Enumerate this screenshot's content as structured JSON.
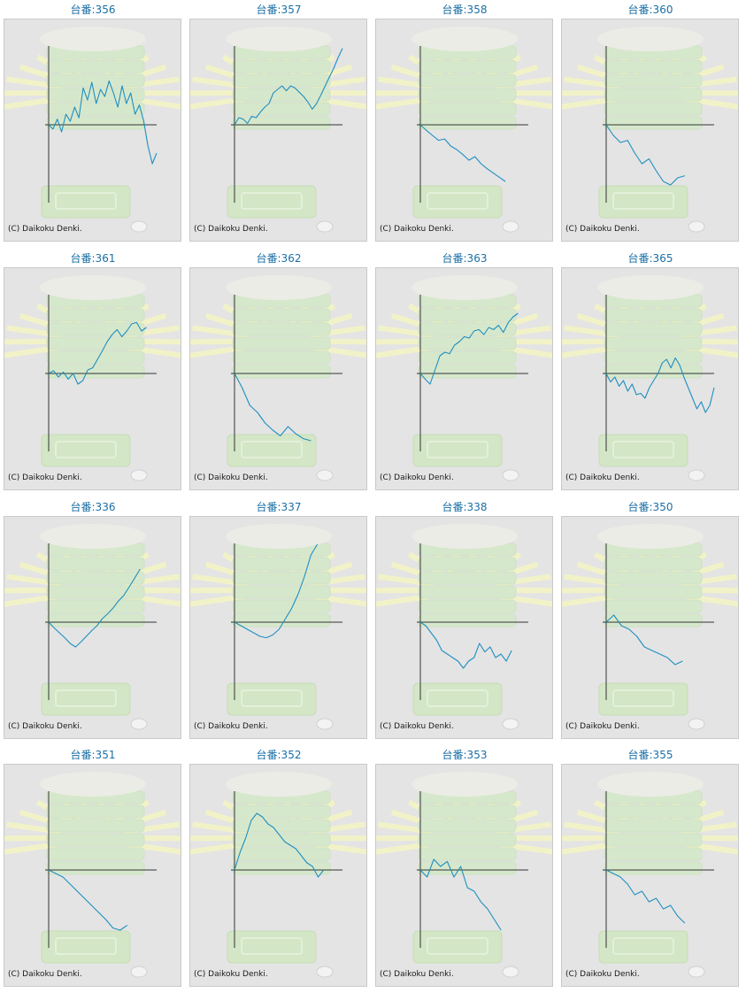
{
  "copyright": "(C) Daikoku Denki.",
  "line_color": "#1e8fc0",
  "title_color": "#1a6fa5",
  "chart_data": [
    {
      "type": "line",
      "title": "台番:356",
      "series": [
        {
          "values": [
            0,
            -0.06,
            0.08,
            -0.1,
            0.15,
            0.05,
            0.25,
            0.1,
            0.52,
            0.35,
            0.6,
            0.3,
            0.5,
            0.4,
            0.62,
            0.45,
            0.25,
            0.55,
            0.3,
            0.45,
            0.15,
            0.28,
            0.05,
            -0.3,
            -0.55,
            -0.4
          ]
        }
      ]
    },
    {
      "type": "line",
      "title": "台番:357",
      "series": [
        {
          "values": [
            0,
            0.1,
            0.08,
            0.02,
            0.12,
            0.1,
            0.18,
            0.25,
            0.3,
            0.45,
            0.5,
            0.55,
            0.48,
            0.55,
            0.52,
            0.46,
            0.4,
            0.32,
            0.22,
            0.3,
            0.42,
            0.55,
            0.68,
            0.8,
            0.95,
            1.08
          ]
        }
      ]
    },
    {
      "type": "line",
      "title": "台番:358",
      "series": [
        {
          "values": [
            0,
            -0.08,
            -0.15,
            -0.22,
            -0.2,
            -0.3,
            -0.35,
            -0.42,
            -0.5,
            -0.45,
            -0.55,
            -0.62,
            -0.68,
            -0.74,
            -0.8
          ]
        }
      ]
    },
    {
      "type": "line",
      "title": "台番:360",
      "series": [
        {
          "values": [
            0,
            -0.15,
            -0.25,
            -0.22,
            -0.4,
            -0.55,
            -0.48,
            -0.65,
            -0.8,
            -0.85,
            -0.75,
            -0.72
          ]
        }
      ]
    },
    {
      "type": "line",
      "title": "台番:361",
      "series": [
        {
          "values": [
            0,
            0.04,
            -0.05,
            0.02,
            -0.08,
            0.0,
            -0.15,
            -0.1,
            0.05,
            0.08,
            0.2,
            0.32,
            0.45,
            0.55,
            0.62,
            0.52,
            0.6,
            0.7,
            0.72,
            0.6,
            0.65
          ]
        }
      ]
    },
    {
      "type": "line",
      "title": "台番:362",
      "series": [
        {
          "values": [
            0,
            -0.2,
            -0.45,
            -0.55,
            -0.7,
            -0.8,
            -0.88,
            -0.75,
            -0.85,
            -0.92,
            -0.95
          ]
        }
      ]
    },
    {
      "type": "line",
      "title": "台番:363",
      "series": [
        {
          "values": [
            0,
            -0.08,
            -0.15,
            0.05,
            0.25,
            0.3,
            0.28,
            0.4,
            0.45,
            0.52,
            0.5,
            0.6,
            0.62,
            0.55,
            0.65,
            0.62,
            0.68,
            0.58,
            0.72,
            0.8,
            0.85
          ]
        }
      ]
    },
    {
      "type": "line",
      "title": "台番:365",
      "series": [
        {
          "values": [
            0,
            -0.12,
            -0.05,
            -0.18,
            -0.1,
            -0.25,
            -0.15,
            -0.3,
            -0.28,
            -0.35,
            -0.2,
            -0.1,
            0.0,
            0.15,
            0.2,
            0.08,
            0.22,
            0.12,
            -0.05,
            -0.2,
            -0.35,
            -0.5,
            -0.4,
            -0.55,
            -0.45,
            -0.2
          ]
        }
      ]
    },
    {
      "type": "line",
      "title": "台番:336",
      "series": [
        {
          "values": [
            0,
            -0.08,
            -0.15,
            -0.22,
            -0.3,
            -0.35,
            -0.28,
            -0.2,
            -0.12,
            -0.05,
            0.05,
            0.12,
            0.2,
            0.3,
            0.38,
            0.5,
            0.62,
            0.75
          ]
        }
      ]
    },
    {
      "type": "line",
      "title": "台番:337",
      "series": [
        {
          "values": [
            0,
            -0.05,
            -0.1,
            -0.15,
            -0.2,
            -0.22,
            -0.18,
            -0.1,
            0.05,
            0.2,
            0.4,
            0.65,
            0.95,
            1.1
          ]
        }
      ]
    },
    {
      "type": "line",
      "title": "台番:338",
      "series": [
        {
          "values": [
            0,
            -0.05,
            -0.15,
            -0.25,
            -0.4,
            -0.45,
            -0.5,
            -0.55,
            -0.65,
            -0.55,
            -0.5,
            -0.3,
            -0.42,
            -0.35,
            -0.5,
            -0.45,
            -0.55,
            -0.4
          ]
        }
      ]
    },
    {
      "type": "line",
      "title": "台番:350",
      "series": [
        {
          "values": [
            0,
            0.1,
            -0.05,
            -0.1,
            -0.2,
            -0.35,
            -0.4,
            -0.45,
            -0.5,
            -0.6,
            -0.55
          ]
        }
      ]
    },
    {
      "type": "line",
      "title": "台番:351",
      "series": [
        {
          "values": [
            0,
            -0.05,
            -0.1,
            -0.2,
            -0.3,
            -0.4,
            -0.5,
            -0.6,
            -0.7,
            -0.82,
            -0.85,
            -0.78
          ]
        }
      ]
    },
    {
      "type": "line",
      "title": "台番:352",
      "series": [
        {
          "values": [
            0,
            0.25,
            0.45,
            0.7,
            0.8,
            0.75,
            0.65,
            0.6,
            0.5,
            0.4,
            0.35,
            0.3,
            0.2,
            0.1,
            0.05,
            -0.1,
            0.0
          ]
        }
      ]
    },
    {
      "type": "line",
      "title": "台番:353",
      "series": [
        {
          "values": [
            0,
            -0.1,
            0.15,
            0.05,
            0.12,
            -0.1,
            0.05,
            -0.25,
            -0.3,
            -0.45,
            -0.55,
            -0.7,
            -0.85
          ]
        }
      ]
    },
    {
      "type": "line",
      "title": "台番:355",
      "series": [
        {
          "values": [
            0,
            -0.05,
            -0.1,
            -0.2,
            -0.35,
            -0.3,
            -0.45,
            -0.4,
            -0.55,
            -0.5,
            -0.65,
            -0.75
          ]
        }
      ]
    }
  ]
}
